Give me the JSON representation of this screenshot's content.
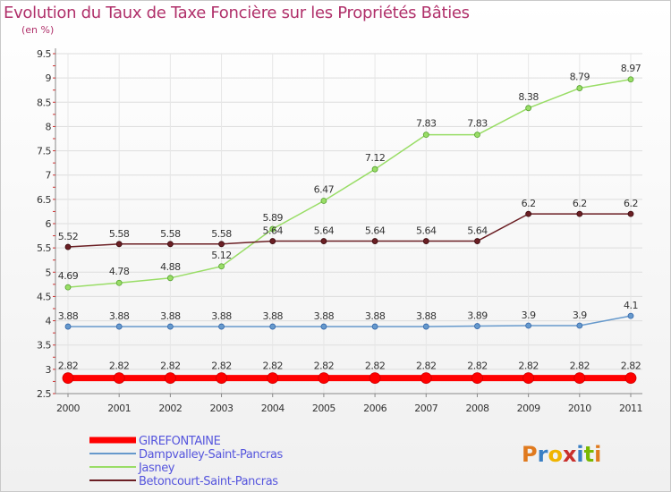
{
  "chart_data": {
    "type": "line",
    "title": "Evolution du Taux de Taxe Foncière sur les Propriétés Bâties",
    "unit_label": "(en %)",
    "xlabel": "",
    "ylabel": "(en %)",
    "ylim": [
      2.5,
      9.5
    ],
    "yticks": [
      "2.5",
      "3",
      "3.5",
      "4",
      "4.5",
      "5",
      "5.5",
      "6",
      "6.5",
      "7",
      "7.5",
      "8",
      "8.5",
      "9",
      "9.5"
    ],
    "categories": [
      "2000",
      "2001",
      "2002",
      "2003",
      "2004",
      "2005",
      "2006",
      "2007",
      "2008",
      "2009",
      "2010",
      "2011"
    ],
    "legend_position": "bottom-left",
    "series": [
      {
        "name": "GIREFONTAINE",
        "color": "#ff0000",
        "values": [
          2.82,
          2.82,
          2.82,
          2.82,
          2.82,
          2.82,
          2.82,
          2.82,
          2.82,
          2.82,
          2.82,
          2.82
        ],
        "labels": [
          "2.82",
          "2.82",
          "2.82",
          "2.82",
          "2.82",
          "2.82",
          "2.82",
          "2.82",
          "2.82",
          "2.82",
          "2.82",
          "2.82"
        ]
      },
      {
        "name": "Dampvalley-Saint-Pancras",
        "color": "#6699cc",
        "values": [
          3.88,
          3.88,
          3.88,
          3.88,
          3.88,
          3.88,
          3.88,
          3.88,
          3.89,
          3.9,
          3.9,
          4.1
        ],
        "labels": [
          "3.88",
          "3.88",
          "3.88",
          "3.88",
          "3.88",
          "3.88",
          "3.88",
          "3.88",
          "3.89",
          "3.9",
          "3.9",
          "4.1"
        ]
      },
      {
        "name": "Jasney",
        "color": "#99dd66",
        "values": [
          4.69,
          4.78,
          4.88,
          5.12,
          5.89,
          6.47,
          7.12,
          7.83,
          7.83,
          8.38,
          8.79,
          8.97
        ],
        "labels": [
          "4.69",
          "4.78",
          "4.88",
          "5.12",
          "5.89",
          "6.47",
          "7.12",
          "7.83",
          "7.83",
          "8.38",
          "8.79",
          "8.97"
        ]
      },
      {
        "name": "Betoncourt-Saint-Pancras",
        "color": "#6b1f24",
        "values": [
          5.52,
          5.58,
          5.58,
          5.58,
          5.64,
          5.64,
          5.64,
          5.64,
          5.64,
          6.2,
          6.2,
          6.2
        ],
        "labels": [
          "5.52",
          "5.58",
          "5.58",
          "5.58",
          "5.64",
          "5.64",
          "5.64",
          "5.64",
          "5.64",
          "6.2",
          "6.2",
          "6.2"
        ]
      }
    ]
  },
  "logo": {
    "letters": [
      "P",
      "r",
      "o",
      "x",
      "i",
      "t",
      "i"
    ],
    "colors": [
      "#e07a1e",
      "#3a7fc4",
      "#f0b400",
      "#c9302c",
      "#3a7fc4",
      "#7ab800",
      "#e07a1e"
    ]
  }
}
